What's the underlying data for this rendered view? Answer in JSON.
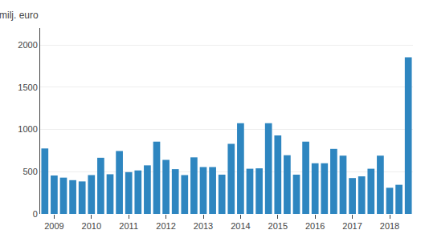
{
  "chart_data": {
    "type": "bar",
    "ylabel": "milj. euro",
    "categories": [
      null,
      "2009",
      null,
      null,
      null,
      "2010",
      null,
      null,
      null,
      "2011",
      null,
      null,
      null,
      "2012",
      null,
      null,
      null,
      "2013",
      null,
      null,
      null,
      "2014",
      null,
      null,
      null,
      "2015",
      null,
      null,
      null,
      "2016",
      null,
      null,
      null,
      "2017",
      null,
      null,
      null,
      "2018",
      null,
      null
    ],
    "values": [
      775,
      455,
      430,
      400,
      385,
      460,
      665,
      470,
      745,
      495,
      515,
      575,
      855,
      640,
      530,
      460,
      670,
      555,
      555,
      465,
      830,
      1075,
      535,
      540,
      1075,
      930,
      695,
      465,
      855,
      600,
      600,
      770,
      690,
      425,
      445,
      535,
      690,
      310,
      345,
      1855
    ],
    "color": "#2e86c0",
    "ylim": [
      0,
      2200
    ],
    "yticks": [
      0,
      500,
      1000,
      1500,
      2000
    ],
    "grid": true
  }
}
